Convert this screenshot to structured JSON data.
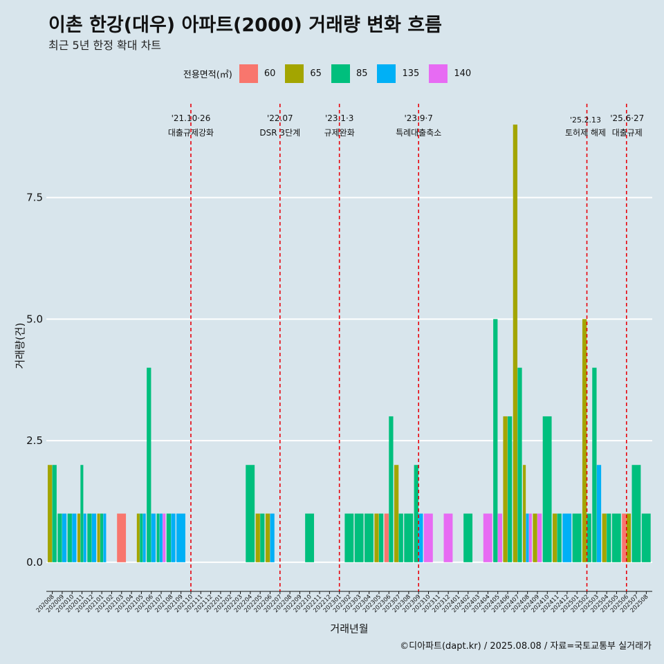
{
  "header": {
    "title": "이촌 한강(대우) 아파트(2000) 거래량 변화 흐름",
    "subtitle": "최근 5년 한정 확대 차트"
  },
  "legend": {
    "title": "전용면적(㎡)",
    "items": [
      {
        "label": "60",
        "color": "#f8766d"
      },
      {
        "label": "65",
        "color": "#a3a500"
      },
      {
        "label": "85",
        "color": "#00bf7d"
      },
      {
        "label": "135",
        "color": "#00b0f6"
      },
      {
        "label": "140",
        "color": "#e76bf3"
      }
    ]
  },
  "footer": {
    "credit": "©디아파트(dapt.kr) / 2025.08.08 / 자료=국토교통부 실거래가"
  },
  "chart_data": {
    "type": "bar",
    "xlabel": "거래년월",
    "ylabel": "거래량(건)",
    "ylim": [
      -0.6,
      9.5
    ],
    "yticks": [
      0,
      2.5,
      5,
      7.5
    ],
    "ytick_labels": [
      "0.0",
      "2.5",
      "5.0",
      "7.5"
    ],
    "series_order": [
      "60",
      "65",
      "85",
      "135",
      "140"
    ],
    "colors": {
      "60": "#f8766d",
      "65": "#a3a500",
      "85": "#00bf7d",
      "135": "#00b0f6",
      "140": "#e76bf3"
    },
    "categories": [
      "202008",
      "202009",
      "202010",
      "202011",
      "202012",
      "202101",
      "202102",
      "202103",
      "202104",
      "202105",
      "202106",
      "202107",
      "202108",
      "202109",
      "202110",
      "202111",
      "202112",
      "202201",
      "202202",
      "202203",
      "202204",
      "202205",
      "202206",
      "202207",
      "202208",
      "202209",
      "202210",
      "202211",
      "202212",
      "202301",
      "202302",
      "202303",
      "202304",
      "202305",
      "202306",
      "202307",
      "202308",
      "202309",
      "202310",
      "202311",
      "202312",
      "202401",
      "202402",
      "202403",
      "202404",
      "202405",
      "202406",
      "202407",
      "202408",
      "202409",
      "202410",
      "202411",
      "202412",
      "202501",
      "202502",
      "202503",
      "202504",
      "202505",
      "202506",
      "202507",
      "202508"
    ],
    "values": {
      "202008": {
        "65": 2,
        "85": 2
      },
      "202009": {
        "85": 1,
        "135": 1
      },
      "202010": {
        "85": 1,
        "135": 1
      },
      "202011": {
        "65": 1,
        "85": 2,
        "135": 1
      },
      "202012": {
        "85": 1,
        "135": 1
      },
      "202101": {
        "65": 1,
        "85": 1,
        "135": 1
      },
      "202103": {
        "60": 1
      },
      "202105": {
        "65": 1,
        "85": 1,
        "135": 1
      },
      "202106": {
        "85": 4,
        "135": 1
      },
      "202107": {
        "85": 1,
        "135": 1,
        "140": 1
      },
      "202108": {
        "85": 1,
        "135": 1
      },
      "202109": {
        "135": 1
      },
      "202204": {
        "85": 2
      },
      "202205": {
        "65": 1,
        "85": 1
      },
      "202206": {
        "65": 1,
        "135": 1
      },
      "202210": {
        "85": 1
      },
      "202302": {
        "85": 1
      },
      "202303": {
        "85": 1
      },
      "202304": {
        "85": 1
      },
      "202305": {
        "65": 1,
        "85": 1
      },
      "202306": {
        "60": 1,
        "85": 3
      },
      "202307": {
        "65": 2,
        "85": 1
      },
      "202308": {
        "85": 1
      },
      "202309": {
        "85": 2,
        "135": 1
      },
      "202310": {
        "140": 1
      },
      "202312": {
        "140": 1
      },
      "202402": {
        "85": 1
      },
      "202404": {
        "140": 1
      },
      "202405": {
        "85": 5,
        "140": 1
      },
      "202406": {
        "65": 3,
        "85": 3
      },
      "202407": {
        "65": 9,
        "85": 4
      },
      "202408": {
        "65": 2,
        "135": 1,
        "140": 1
      },
      "202409": {
        "65": 1,
        "140": 1
      },
      "202410": {
        "85": 3
      },
      "202411": {
        "65": 1,
        "85": 1
      },
      "202412": {
        "135": 1
      },
      "202501": {
        "85": 1
      },
      "202502": {
        "65": 5,
        "85": 1
      },
      "202503": {
        "135": 2,
        "85": 4
      },
      "202504": {
        "65": 1,
        "85": 1
      },
      "202505": {
        "85": 1
      },
      "202506": {
        "60": 1,
        "65": 1
      },
      "202507": {
        "85": 2
      },
      "202508": {
        "85": 1
      }
    },
    "annotations": [
      {
        "at": "202110",
        "date": "'21.10·26",
        "text": "대출규제강화"
      },
      {
        "at": "202207",
        "date": "'22.07",
        "text": "DSR 3단계"
      },
      {
        "at": "202301",
        "date": "'23.1·3",
        "text": "규제완화"
      },
      {
        "at": "202309",
        "date": "'23.9·7",
        "text": "특례대출축소"
      },
      {
        "at": "202502",
        "date": "'25.2.13",
        "text": "토허제 해제"
      },
      {
        "at": "202506",
        "date": "'25.6·27",
        "text": "대출규제"
      }
    ]
  }
}
